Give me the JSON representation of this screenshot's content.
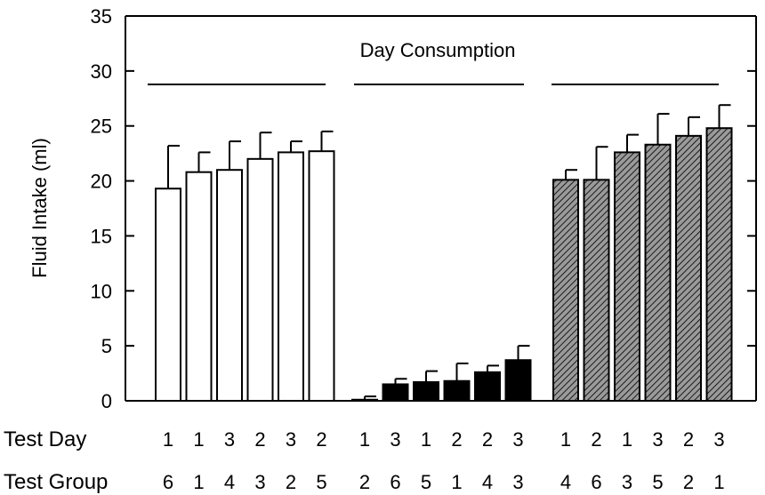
{
  "chart_data": {
    "type": "bar",
    "title": "Day Consumption",
    "xlabel": "",
    "ylabel": "Fluid Intake (ml)",
    "ylim": [
      0,
      35
    ],
    "yticks": [
      0,
      5,
      10,
      15,
      20,
      25,
      30,
      35
    ],
    "grid": false,
    "row_labels": [
      "Test Day",
      "Test Group"
    ],
    "groups": [
      {
        "fill": "open",
        "values": [
          19.3,
          20.8,
          21.0,
          22.0,
          22.6,
          22.7
        ],
        "errors": [
          3.9,
          1.8,
          2.6,
          2.4,
          1.0,
          1.8
        ],
        "test_day": [
          "1",
          "1",
          "3",
          "2",
          "3",
          "2"
        ],
        "test_group": [
          "6",
          "1",
          "4",
          "3",
          "2",
          "5"
        ]
      },
      {
        "fill": "solid",
        "values": [
          0.1,
          1.5,
          1.7,
          1.8,
          2.6,
          3.7
        ],
        "errors": [
          0.3,
          0.5,
          1.0,
          1.6,
          0.6,
          1.3
        ],
        "test_day": [
          "1",
          "3",
          "1",
          "2",
          "2",
          "3"
        ],
        "test_group": [
          "2",
          "6",
          "5",
          "1",
          "4",
          "3"
        ]
      },
      {
        "fill": "hatched",
        "values": [
          20.1,
          20.1,
          22.6,
          23.3,
          24.1,
          24.8
        ],
        "errors": [
          0.9,
          3.0,
          1.6,
          2.8,
          1.7,
          2.1
        ],
        "test_day": [
          "1",
          "2",
          "1",
          "3",
          "2",
          "3"
        ],
        "test_group": [
          "4",
          "6",
          "3",
          "5",
          "2",
          "1"
        ]
      }
    ]
  },
  "colors": {
    "axis": "#000000",
    "open_fill": "#ffffff",
    "solid_fill": "#000000",
    "hatch_bg": "#9a9a9a",
    "hatch_line": "#1a1a1a"
  }
}
